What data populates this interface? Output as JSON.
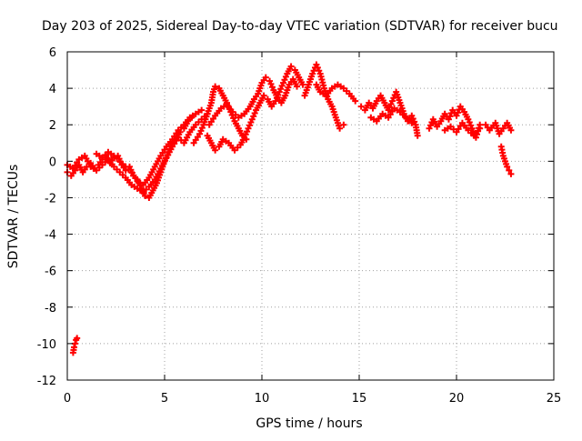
{
  "chart_data": {
    "type": "scatter",
    "title": "Day 203 of 2025, Sidereal Day-to-day VTEC variation (SDTVAR) for receiver bucu",
    "xlabel": "GPS time / hours",
    "ylabel": "SDTVAR / TECUs",
    "xlim": [
      0,
      25
    ],
    "ylim": [
      -12,
      6
    ],
    "xticks": [
      0,
      5,
      10,
      15,
      20,
      25
    ],
    "yticks": [
      -12,
      -10,
      -8,
      -6,
      -4,
      -2,
      0,
      2,
      4,
      6
    ],
    "grid": true,
    "marker": "+",
    "series": [
      {
        "name": "SDTVAR",
        "color": "#ff0000",
        "segments": [
          [
            [
              0.0,
              -0.6
            ],
            [
              0.2,
              -0.8
            ],
            [
              0.4,
              -0.5
            ],
            [
              0.6,
              -0.2
            ],
            [
              0.8,
              -0.6
            ],
            [
              1.0,
              -0.3
            ],
            [
              1.2,
              -0.1
            ],
            [
              1.4,
              -0.4
            ],
            [
              1.6,
              -0.2
            ],
            [
              1.8,
              0.1
            ],
            [
              2.0,
              0.3
            ],
            [
              2.2,
              -0.1
            ],
            [
              2.4,
              0.2
            ],
            [
              2.6,
              0.3
            ],
            [
              2.8,
              -0.2
            ],
            [
              3.0,
              -0.5
            ],
            [
              3.2,
              -0.3
            ],
            [
              3.4,
              -0.8
            ],
            [
              3.6,
              -1.0
            ],
            [
              3.8,
              -1.5
            ],
            [
              4.0,
              -1.9
            ],
            [
              4.2,
              -2.0
            ],
            [
              4.4,
              -1.6
            ],
            [
              4.6,
              -1.2
            ],
            [
              4.8,
              -0.6
            ],
            [
              5.0,
              0.0
            ],
            [
              5.2,
              0.5
            ],
            [
              5.4,
              1.0
            ],
            [
              5.6,
              1.2
            ],
            [
              5.8,
              1.6
            ],
            [
              6.0,
              1.8
            ],
            [
              6.2,
              2.2
            ],
            [
              6.4,
              2.4
            ]
          ],
          [
            [
              0.0,
              -0.2
            ],
            [
              0.3,
              -0.4
            ],
            [
              0.6,
              0.1
            ],
            [
              0.9,
              0.3
            ],
            [
              1.2,
              -0.3
            ],
            [
              1.5,
              -0.5
            ],
            [
              1.8,
              -0.2
            ],
            [
              2.1,
              0.1
            ],
            [
              2.4,
              -0.3
            ],
            [
              2.7,
              -0.6
            ],
            [
              3.0,
              -0.9
            ],
            [
              3.3,
              -1.3
            ],
            [
              3.6,
              -1.5
            ],
            [
              3.9,
              -1.7
            ],
            [
              4.2,
              -1.4
            ],
            [
              4.5,
              -1.0
            ],
            [
              4.8,
              -0.4
            ],
            [
              5.1,
              0.2
            ],
            [
              5.4,
              0.8
            ],
            [
              5.7,
              1.3
            ],
            [
              6.0,
              1.0
            ],
            [
              6.3,
              1.6
            ],
            [
              6.6,
              2.0
            ],
            [
              6.9,
              2.3
            ],
            [
              7.2,
              2.6
            ]
          ],
          [
            [
              1.5,
              0.4
            ],
            [
              1.8,
              0.2
            ],
            [
              2.1,
              0.5
            ],
            [
              2.4,
              0.3
            ],
            [
              2.7,
              0.0
            ],
            [
              3.0,
              -0.3
            ],
            [
              3.3,
              -0.6
            ],
            [
              3.6,
              -1.1
            ],
            [
              3.9,
              -1.3
            ],
            [
              4.2,
              -0.9
            ],
            [
              4.5,
              -0.3
            ],
            [
              4.8,
              0.3
            ],
            [
              5.1,
              0.8
            ],
            [
              5.4,
              1.2
            ],
            [
              5.7,
              1.7
            ],
            [
              6.0,
              2.0
            ],
            [
              6.3,
              2.4
            ],
            [
              6.6,
              2.6
            ],
            [
              6.9,
              2.8
            ]
          ],
          [
            [
              0.3,
              -10.5
            ],
            [
              0.35,
              -10.2
            ],
            [
              0.4,
              -10.0
            ],
            [
              0.45,
              -9.8
            ],
            [
              0.5,
              -9.7
            ]
          ],
          [
            [
              6.5,
              1.0
            ],
            [
              6.8,
              1.5
            ],
            [
              7.0,
              2.0
            ],
            [
              7.2,
              2.6
            ],
            [
              7.4,
              3.2
            ],
            [
              7.5,
              3.8
            ],
            [
              7.6,
              4.1
            ],
            [
              7.8,
              4.0
            ],
            [
              8.0,
              3.6
            ],
            [
              8.2,
              3.2
            ],
            [
              8.4,
              2.7
            ],
            [
              8.6,
              2.2
            ],
            [
              8.8,
              1.8
            ],
            [
              9.0,
              1.4
            ],
            [
              9.2,
              1.2
            ]
          ],
          [
            [
              7.2,
              1.4
            ],
            [
              7.4,
              1.0
            ],
            [
              7.6,
              0.6
            ],
            [
              7.8,
              0.8
            ],
            [
              8.0,
              1.2
            ],
            [
              8.3,
              1.0
            ],
            [
              8.6,
              0.6
            ],
            [
              8.9,
              0.9
            ],
            [
              9.1,
              1.3
            ],
            [
              9.3,
              1.8
            ],
            [
              9.5,
              2.3
            ],
            [
              9.7,
              2.8
            ],
            [
              9.9,
              3.2
            ],
            [
              10.1,
              3.6
            ],
            [
              10.3,
              3.4
            ],
            [
              10.5,
              3.0
            ],
            [
              10.7,
              3.3
            ],
            [
              10.9,
              3.8
            ],
            [
              11.1,
              4.3
            ],
            [
              11.3,
              4.8
            ],
            [
              11.5,
              5.2
            ],
            [
              11.7,
              5.0
            ],
            [
              11.9,
              4.6
            ],
            [
              12.1,
              4.2
            ]
          ],
          [
            [
              7.3,
              2.0
            ],
            [
              7.6,
              2.5
            ],
            [
              7.9,
              2.9
            ],
            [
              8.2,
              3.1
            ],
            [
              8.5,
              2.7
            ],
            [
              8.8,
              2.4
            ],
            [
              9.1,
              2.6
            ],
            [
              9.4,
              3.0
            ],
            [
              9.6,
              3.4
            ],
            [
              9.8,
              3.7
            ],
            [
              10.0,
              4.3
            ],
            [
              10.2,
              4.6
            ],
            [
              10.4,
              4.4
            ],
            [
              10.6,
              3.9
            ],
            [
              10.8,
              3.5
            ],
            [
              11.0,
              3.2
            ],
            [
              11.2,
              3.6
            ],
            [
              11.4,
              4.2
            ],
            [
              11.6,
              4.5
            ],
            [
              11.8,
              4.1
            ]
          ],
          [
            [
              12.2,
              3.6
            ],
            [
              12.4,
              4.2
            ],
            [
              12.6,
              4.8
            ],
            [
              12.8,
              5.3
            ],
            [
              13.0,
              4.8
            ],
            [
              13.2,
              4.0
            ],
            [
              13.4,
              3.4
            ],
            [
              13.6,
              3.0
            ],
            [
              13.8,
              2.4
            ],
            [
              14.0,
              1.8
            ],
            [
              14.2,
              2.0
            ]
          ],
          [
            [
              12.8,
              4.2
            ],
            [
              13.0,
              3.8
            ],
            [
              13.3,
              3.6
            ],
            [
              13.6,
              4.0
            ],
            [
              13.9,
              4.2
            ],
            [
              14.2,
              4.0
            ],
            [
              14.5,
              3.7
            ],
            [
              14.8,
              3.3
            ]
          ],
          [
            [
              15.1,
              3.0
            ],
            [
              15.3,
              2.8
            ],
            [
              15.5,
              3.2
            ],
            [
              15.7,
              2.9
            ],
            [
              15.9,
              3.3
            ],
            [
              16.1,
              3.6
            ],
            [
              16.3,
              3.2
            ],
            [
              16.5,
              2.8
            ],
            [
              16.7,
              3.3
            ],
            [
              16.9,
              3.8
            ],
            [
              17.1,
              3.2
            ],
            [
              17.3,
              2.6
            ],
            [
              17.5,
              2.2
            ],
            [
              17.7,
              2.5
            ],
            [
              17.9,
              2.0
            ],
            [
              18.0,
              1.4
            ]
          ],
          [
            [
              15.6,
              2.4
            ],
            [
              15.9,
              2.2
            ],
            [
              16.2,
              2.6
            ],
            [
              16.5,
              2.4
            ],
            [
              16.8,
              2.9
            ],
            [
              17.1,
              2.7
            ],
            [
              17.4,
              2.4
            ],
            [
              17.7,
              2.1
            ]
          ],
          [
            [
              18.6,
              1.8
            ],
            [
              18.8,
              2.3
            ],
            [
              19.0,
              1.9
            ],
            [
              19.2,
              2.2
            ],
            [
              19.4,
              2.6
            ],
            [
              19.6,
              2.3
            ],
            [
              19.8,
              2.8
            ],
            [
              20.0,
              2.5
            ],
            [
              20.2,
              3.0
            ],
            [
              20.4,
              2.7
            ],
            [
              20.6,
              2.3
            ],
            [
              20.8,
              1.8
            ],
            [
              21.0,
              1.3
            ],
            [
              21.2,
              2.0
            ]
          ],
          [
            [
              19.4,
              1.7
            ],
            [
              19.7,
              1.9
            ],
            [
              20.0,
              1.6
            ],
            [
              20.3,
              2.1
            ],
            [
              20.6,
              1.7
            ],
            [
              20.9,
              1.4
            ],
            [
              21.2,
              1.8
            ]
          ],
          [
            [
              21.5,
              2.0
            ],
            [
              21.7,
              1.7
            ],
            [
              22.0,
              2.1
            ],
            [
              22.2,
              1.5
            ],
            [
              22.4,
              1.8
            ],
            [
              22.6,
              2.1
            ],
            [
              22.8,
              1.7
            ]
          ],
          [
            [
              22.3,
              0.8
            ],
            [
              22.4,
              0.3
            ],
            [
              22.5,
              0.0
            ],
            [
              22.6,
              -0.3
            ],
            [
              22.7,
              -0.5
            ],
            [
              22.8,
              -0.7
            ]
          ]
        ]
      }
    ]
  }
}
